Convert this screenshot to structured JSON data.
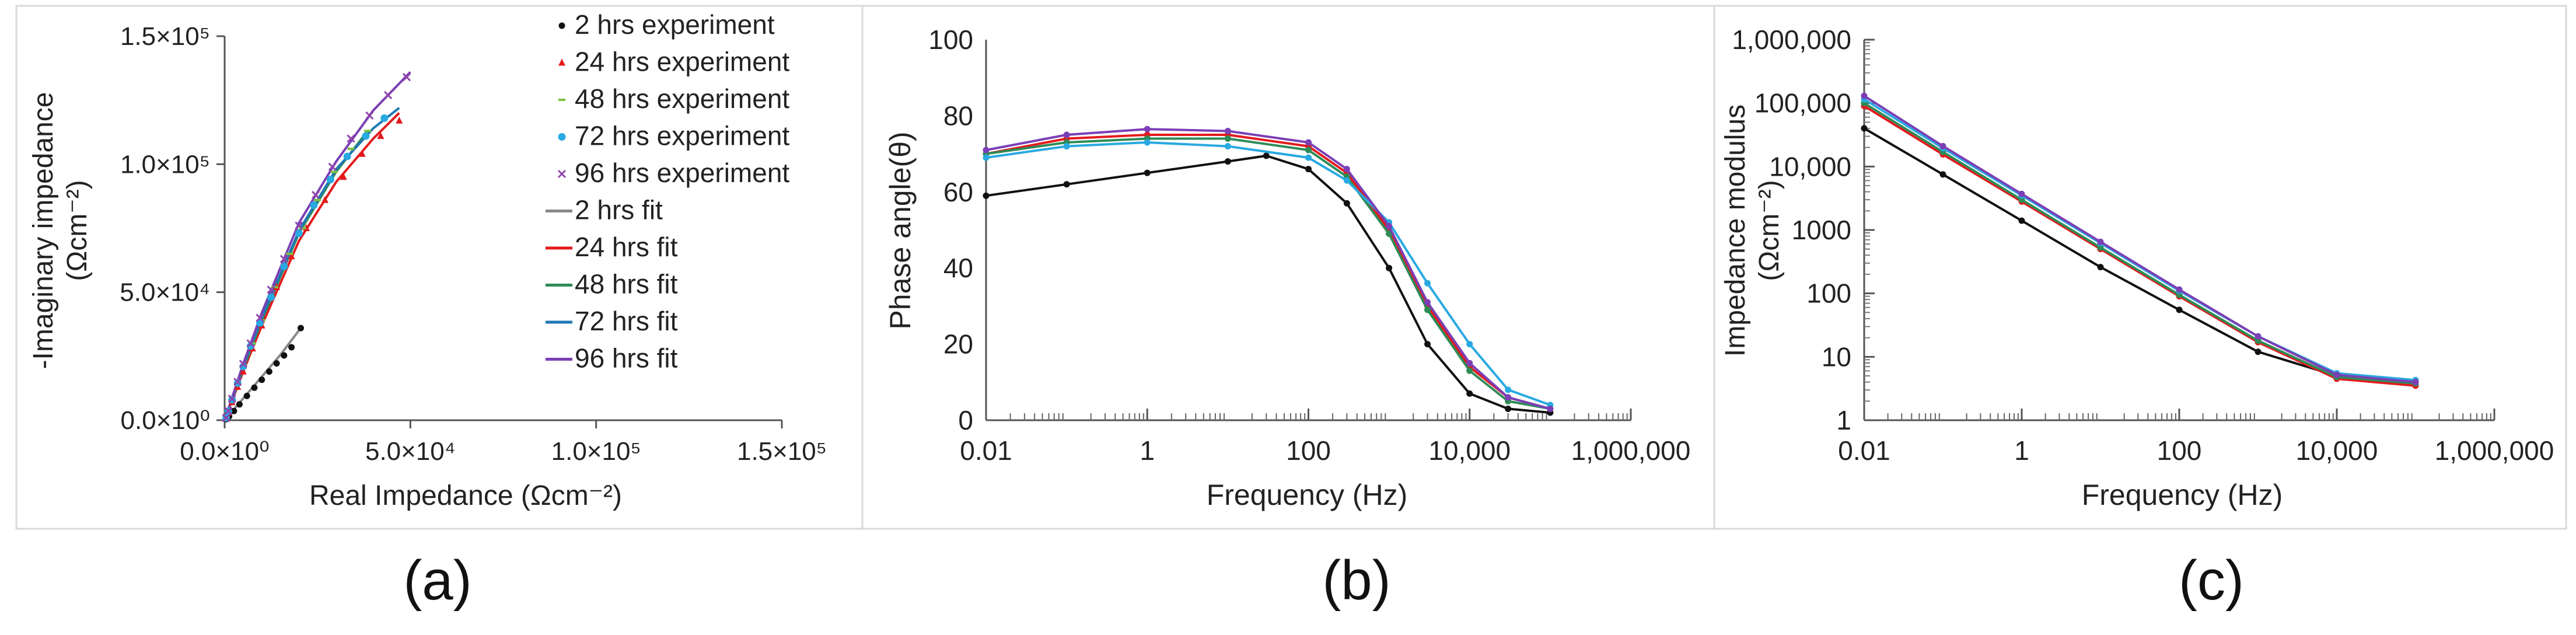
{
  "chart_data": [
    {
      "type": "scatter",
      "panel_label": "(a)",
      "xlabel": "Real Impedance (Ωcm⁻²)",
      "ylabel_line1": "-Imaginary impedance",
      "ylabel_line2": "(Ωcm⁻²)",
      "xlim": [
        0,
        150000
      ],
      "ylim": [
        0,
        150000
      ],
      "xticks": [
        0,
        50000,
        100000,
        150000
      ],
      "yticks": [
        0,
        50000,
        100000,
        150000
      ],
      "xtick_labels": [
        "0.0×10⁰",
        "5.0×10⁴",
        "1.0×10⁵",
        "1.5×10⁵"
      ],
      "ytick_labels": [
        "0.0×10⁰",
        "5.0×10⁴",
        "1.0×10⁵",
        "1.5×10⁵"
      ],
      "legend_position": "top-right",
      "experiment_series": [
        {
          "name": "2 hrs experiment",
          "color": "#111111",
          "marker": "dot",
          "points": [
            [
              400,
              400
            ],
            [
              1200,
              1500
            ],
            [
              2500,
              3600
            ],
            [
              4000,
              6200
            ],
            [
              6000,
              9500
            ],
            [
              8000,
              12700
            ],
            [
              10000,
              15800
            ],
            [
              12000,
              19000
            ],
            [
              14000,
              22200
            ],
            [
              16000,
              25300
            ],
            [
              18000,
              28500
            ],
            [
              20500,
              36000
            ]
          ]
        },
        {
          "name": "24 hrs experiment",
          "color": "#e31a1c",
          "marker": "triangle",
          "points": [
            [
              400,
              800
            ],
            [
              1000,
              3000
            ],
            [
              2000,
              7000
            ],
            [
              3500,
              13000
            ],
            [
              5000,
              19000
            ],
            [
              7500,
              28000
            ],
            [
              10000,
              37000
            ],
            [
              14000,
              52000
            ],
            [
              18000,
              64000
            ],
            [
              22000,
              75000
            ],
            [
              27000,
              86000
            ],
            [
              32000,
              95000
            ],
            [
              37000,
              104000
            ],
            [
              42000,
              111000
            ],
            [
              47000,
              117000
            ]
          ]
        },
        {
          "name": "48 hrs experiment",
          "color": "#7cc242",
          "marker": "dash",
          "points": [
            [
              400,
              800
            ],
            [
              1000,
              3200
            ],
            [
              2000,
              7500
            ],
            [
              3500,
              14000
            ],
            [
              5000,
              20500
            ],
            [
              7500,
              30000
            ],
            [
              10000,
              39000
            ],
            [
              13500,
              52000
            ],
            [
              17500,
              65000
            ],
            [
              21000,
              75000
            ],
            [
              25000,
              86000
            ],
            [
              29500,
              97000
            ],
            [
              34000,
              106000
            ],
            [
              38500,
              113000
            ]
          ]
        },
        {
          "name": "72 hrs experiment",
          "color": "#29a9e1",
          "marker": "circle",
          "points": [
            [
              400,
              900
            ],
            [
              1000,
              3500
            ],
            [
              2000,
              8000
            ],
            [
              3500,
              14500
            ],
            [
              5000,
              21000
            ],
            [
              7000,
              29000
            ],
            [
              9500,
              38000
            ],
            [
              12500,
              48000
            ],
            [
              16000,
              60000
            ],
            [
              20000,
              73000
            ],
            [
              24000,
              84000
            ],
            [
              28500,
              94000
            ],
            [
              33000,
              103000
            ],
            [
              38000,
              111000
            ],
            [
              43000,
              118000
            ]
          ]
        },
        {
          "name": "96 hrs experiment",
          "color": "#8e44ad",
          "marker": "x",
          "points": [
            [
              400,
              900
            ],
            [
              1000,
              3600
            ],
            [
              2000,
              8400
            ],
            [
              3500,
              15000
            ],
            [
              5000,
              22000
            ],
            [
              7000,
              30000
            ],
            [
              9500,
              40000
            ],
            [
              12500,
              51000
            ],
            [
              16000,
              63000
            ],
            [
              20000,
              76000
            ],
            [
              24500,
              88000
            ],
            [
              29000,
              99000
            ],
            [
              34000,
              110000
            ],
            [
              39000,
              119000
            ],
            [
              44000,
              127000
            ],
            [
              49000,
              134000
            ]
          ]
        }
      ],
      "fit_series": [
        {
          "name": "2 hrs fit",
          "color": "#888888",
          "points": [
            [
              0,
              0
            ],
            [
              5000,
              8500
            ],
            [
              10000,
              17000
            ],
            [
              15000,
              25500
            ],
            [
              20500,
              36000
            ]
          ]
        },
        {
          "name": "24 hrs fit",
          "color": "#e31a1c",
          "points": [
            [
              0,
              0
            ],
            [
              5000,
              19000
            ],
            [
              10000,
              37000
            ],
            [
              20000,
              70000
            ],
            [
              30000,
              93000
            ],
            [
              40000,
              110000
            ],
            [
              47000,
              120000
            ]
          ]
        },
        {
          "name": "48 hrs fit",
          "color": "#2e8b57",
          "points": [
            [
              0,
              0
            ],
            [
              5000,
              20000
            ],
            [
              10000,
              39000
            ],
            [
              20000,
              73000
            ],
            [
              30000,
              97000
            ],
            [
              38500,
              113000
            ]
          ]
        },
        {
          "name": "72 hrs fit",
          "color": "#1f78b4",
          "points": [
            [
              0,
              0
            ],
            [
              5000,
              21000
            ],
            [
              10000,
              40000
            ],
            [
              20000,
              74000
            ],
            [
              30000,
              98000
            ],
            [
              40000,
              114000
            ],
            [
              47000,
              122000
            ]
          ]
        },
        {
          "name": "96 hrs fit",
          "color": "#7b3fb5",
          "points": [
            [
              0,
              0
            ],
            [
              5000,
              22000
            ],
            [
              10000,
              42000
            ],
            [
              20000,
              77000
            ],
            [
              30000,
              101000
            ],
            [
              40000,
              121000
            ],
            [
              50000,
              136000
            ]
          ]
        }
      ]
    },
    {
      "type": "scatter",
      "panel_label": "(b)",
      "xlabel": "Frequency (Hz)",
      "ylabel": "Phase angle(θ)",
      "xscale": "log",
      "xlim": [
        0.01,
        1000000
      ],
      "ylim": [
        0,
        100
      ],
      "xticks": [
        0.01,
        1,
        100,
        10000,
        1000000
      ],
      "xtick_labels": [
        "0.01",
        "1",
        "100",
        "10,000",
        "1,000,000"
      ],
      "yticks": [
        0,
        20,
        40,
        60,
        80,
        100
      ],
      "ytick_labels": [
        "0",
        "20",
        "40",
        "60",
        "80",
        "100"
      ],
      "series": [
        {
          "name": "2 hrs",
          "color": "#111111",
          "x": [
            0.01,
            0.1,
            1,
            10,
            30,
            100,
            300,
            1000,
            3000,
            10000,
            30000,
            100000
          ],
          "y": [
            59,
            62,
            65,
            68,
            69.5,
            66,
            57,
            40,
            20,
            7,
            3,
            2
          ]
        },
        {
          "name": "24 hrs",
          "color": "#e31a1c",
          "x": [
            0.01,
            0.1,
            1,
            10,
            100,
            300,
            1000,
            3000,
            10000,
            30000,
            100000
          ],
          "y": [
            70,
            74,
            75,
            75,
            72,
            65,
            50,
            30,
            14,
            6,
            3
          ]
        },
        {
          "name": "48 hrs",
          "color": "#2e8b57",
          "x": [
            0.01,
            0.1,
            1,
            10,
            100,
            300,
            1000,
            3000,
            10000,
            30000,
            100000
          ],
          "y": [
            70,
            73,
            74,
            74,
            71,
            64,
            49,
            29,
            13,
            5,
            3
          ]
        },
        {
          "name": "72 hrs",
          "color": "#29a9e1",
          "x": [
            0.01,
            0.1,
            1,
            10,
            100,
            300,
            1000,
            3000,
            10000,
            30000,
            100000
          ],
          "y": [
            69,
            72,
            73,
            72,
            69,
            63,
            52,
            36,
            20,
            8,
            4
          ]
        },
        {
          "name": "96 hrs",
          "color": "#7b3fb5",
          "x": [
            0.01,
            0.1,
            1,
            10,
            100,
            300,
            1000,
            3000,
            10000,
            30000,
            100000
          ],
          "y": [
            71,
            75,
            76.5,
            76,
            73,
            66,
            51,
            31,
            15,
            6,
            3
          ]
        }
      ]
    },
    {
      "type": "scatter",
      "panel_label": "(c)",
      "xlabel": "Frequency (Hz)",
      "ylabel_line1": "Impedance modulus",
      "ylabel_line2": "(Ωcm⁻²)",
      "xscale": "log",
      "yscale": "log",
      "xlim": [
        0.01,
        1000000
      ],
      "ylim": [
        1,
        1000000
      ],
      "xticks": [
        0.01,
        1,
        100,
        10000,
        1000000
      ],
      "xtick_labels": [
        "0.01",
        "1",
        "100",
        "10,000",
        "1,000,000"
      ],
      "yticks": [
        1,
        10,
        100,
        1000,
        10000,
        100000,
        1000000
      ],
      "ytick_labels": [
        "1",
        "10",
        "100",
        "1000",
        "10,000",
        "100,000",
        "1,000,000"
      ],
      "series": [
        {
          "name": "2 hrs",
          "color": "#111111",
          "x": [
            0.01,
            0.1,
            1,
            10,
            100,
            1000,
            10000,
            100000
          ],
          "y": [
            40000,
            7500,
            1400,
            260,
            55,
            12,
            5,
            4
          ]
        },
        {
          "name": "24 hrs",
          "color": "#e31a1c",
          "x": [
            0.01,
            0.1,
            1,
            10,
            100,
            1000,
            10000,
            100000
          ],
          "y": [
            90000,
            15500,
            2800,
            500,
            90,
            17,
            4.5,
            3.5
          ]
        },
        {
          "name": "48 hrs",
          "color": "#2e8b57",
          "x": [
            0.01,
            0.1,
            1,
            10,
            100,
            1000,
            10000,
            100000
          ],
          "y": [
            100000,
            17000,
            3000,
            530,
            95,
            18,
            4.8,
            3.8
          ]
        },
        {
          "name": "72 hrs",
          "color": "#29a9e1",
          "x": [
            0.01,
            0.1,
            1,
            10,
            100,
            1000,
            10000,
            100000
          ],
          "y": [
            115000,
            19500,
            3500,
            620,
            110,
            21,
            5.5,
            4.3
          ]
        },
        {
          "name": "96 hrs",
          "color": "#7b3fb5",
          "x": [
            0.01,
            0.1,
            1,
            10,
            100,
            1000,
            10000,
            100000
          ],
          "y": [
            130000,
            21000,
            3700,
            650,
            115,
            21,
            5.2,
            4
          ]
        }
      ]
    }
  ]
}
